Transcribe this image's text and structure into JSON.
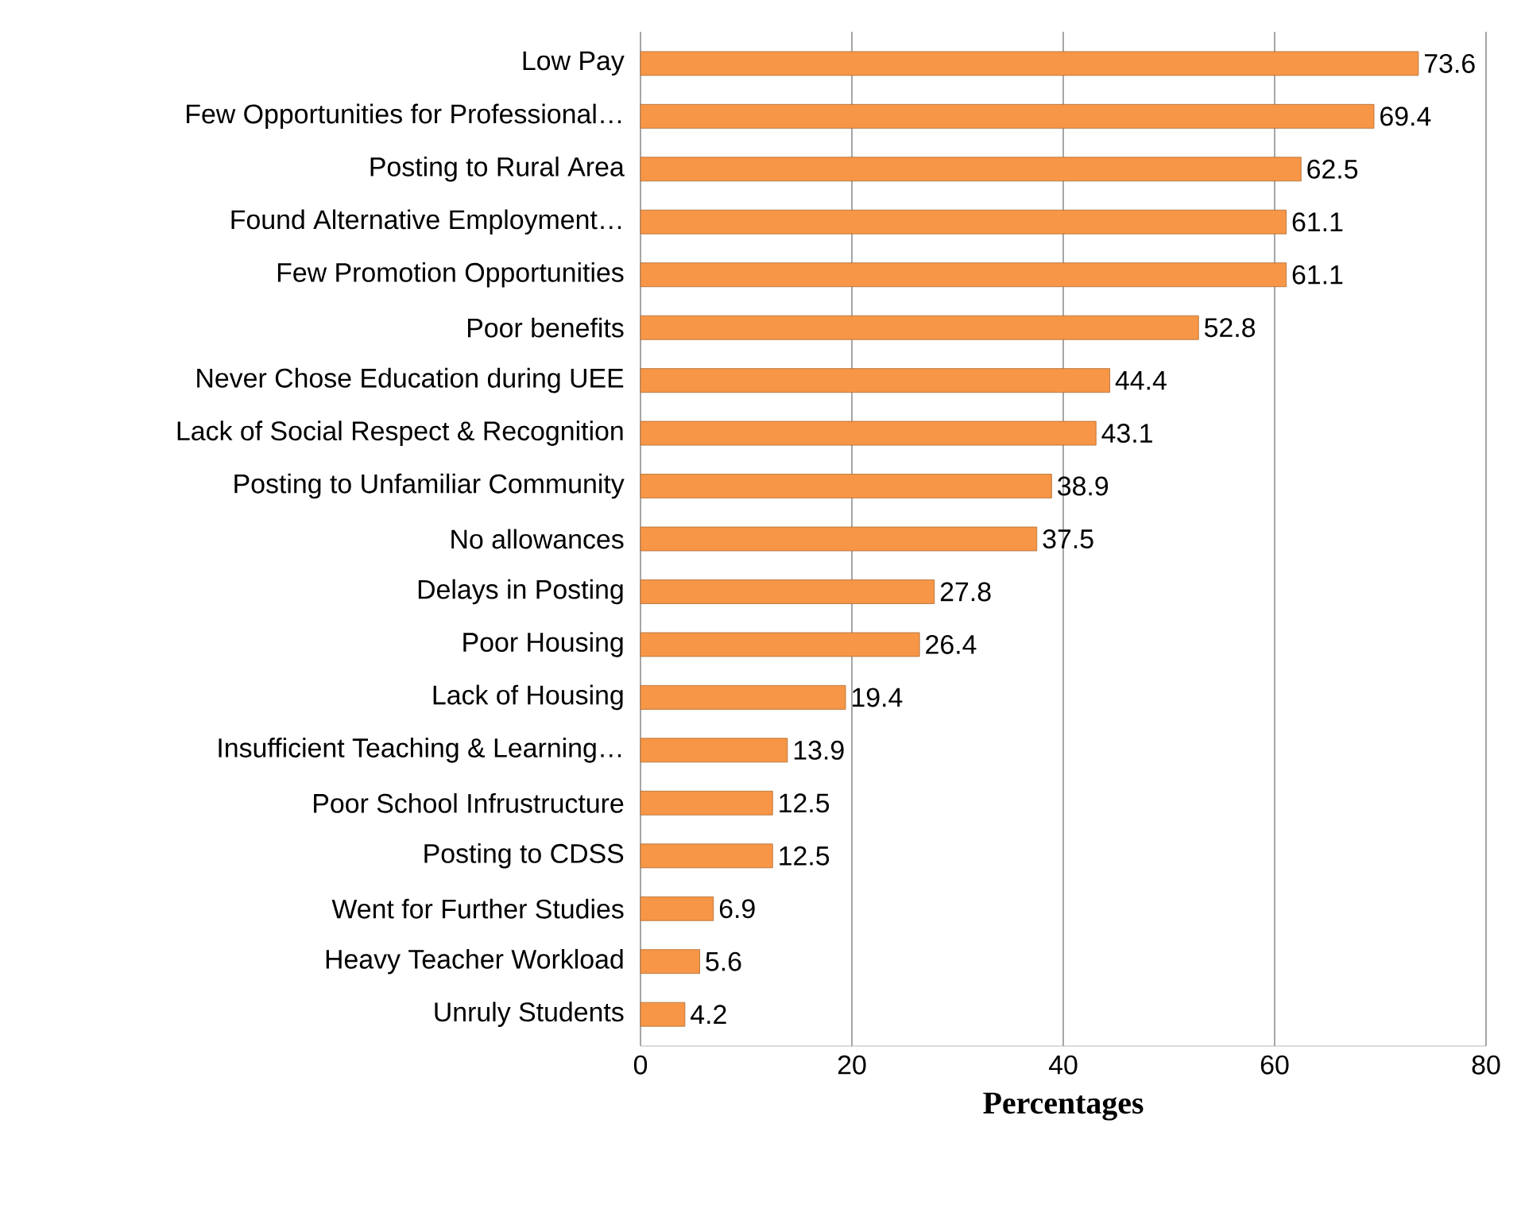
{
  "chart_data": {
    "type": "bar",
    "orientation": "horizontal",
    "xlabel": "Percentages",
    "categories": [
      "Low Pay",
      "Few Opportunities for Professional…",
      "Posting to Rural Area",
      "Found Alternative Employment…",
      "Few Promotion Opportunities",
      "Poor benefits",
      "Never Chose Education during UEE",
      "Lack of Social Respect & Recognition",
      "Posting to Unfamiliar Community",
      "No allowances",
      "Delays in Posting",
      "Poor Housing",
      "Lack of Housing",
      "Insufficient Teaching & Learning…",
      "Poor School Infrustructure",
      "Posting to CDSS",
      "Went for Further Studies",
      "Heavy Teacher Workload",
      "Unruly Students"
    ],
    "values": [
      73.6,
      69.4,
      62.5,
      61.1,
      61.1,
      52.8,
      44.4,
      43.1,
      38.9,
      37.5,
      27.8,
      26.4,
      19.4,
      13.9,
      12.5,
      12.5,
      6.9,
      5.6,
      4.2
    ],
    "color": "#f79646",
    "xlim": [
      0,
      80
    ],
    "xticks": [
      0,
      20,
      40,
      60,
      80
    ],
    "grid": "x",
    "data_labels": true
  }
}
